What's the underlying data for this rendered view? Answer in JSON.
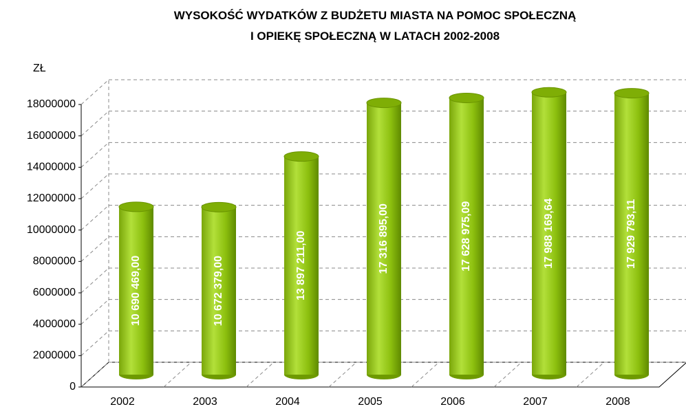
{
  "chart_data": {
    "type": "bar",
    "title": "WYSOKOŚĆ WYDATKÓW Z BUDŻETU MIASTA NA POMOC SPOŁECZNĄ I OPIEKĘ SPOŁECZNĄ W LATACH 2002-2008",
    "y_label": "ZŁ",
    "categories": [
      "2002",
      "2003",
      "2004",
      "2005",
      "2006",
      "2007",
      "2008"
    ],
    "values": [
      10690469.0,
      10672379.0,
      13897211.0,
      17316895.0,
      17628975.09,
      17988169.64,
      17929793.11
    ],
    "value_labels": [
      "10 690 469,00",
      "10 672 379,00",
      "13 897 211,00",
      "17 316 895,00",
      "17 628 975,09",
      "17 988 169,64",
      "17 929 793,11"
    ],
    "color": "#8cbf0e",
    "ylim": [
      0,
      18000000
    ],
    "yticks": [
      0,
      2000000,
      4000000,
      6000000,
      8000000,
      10000000,
      12000000,
      14000000,
      16000000,
      18000000
    ],
    "grid": true
  }
}
